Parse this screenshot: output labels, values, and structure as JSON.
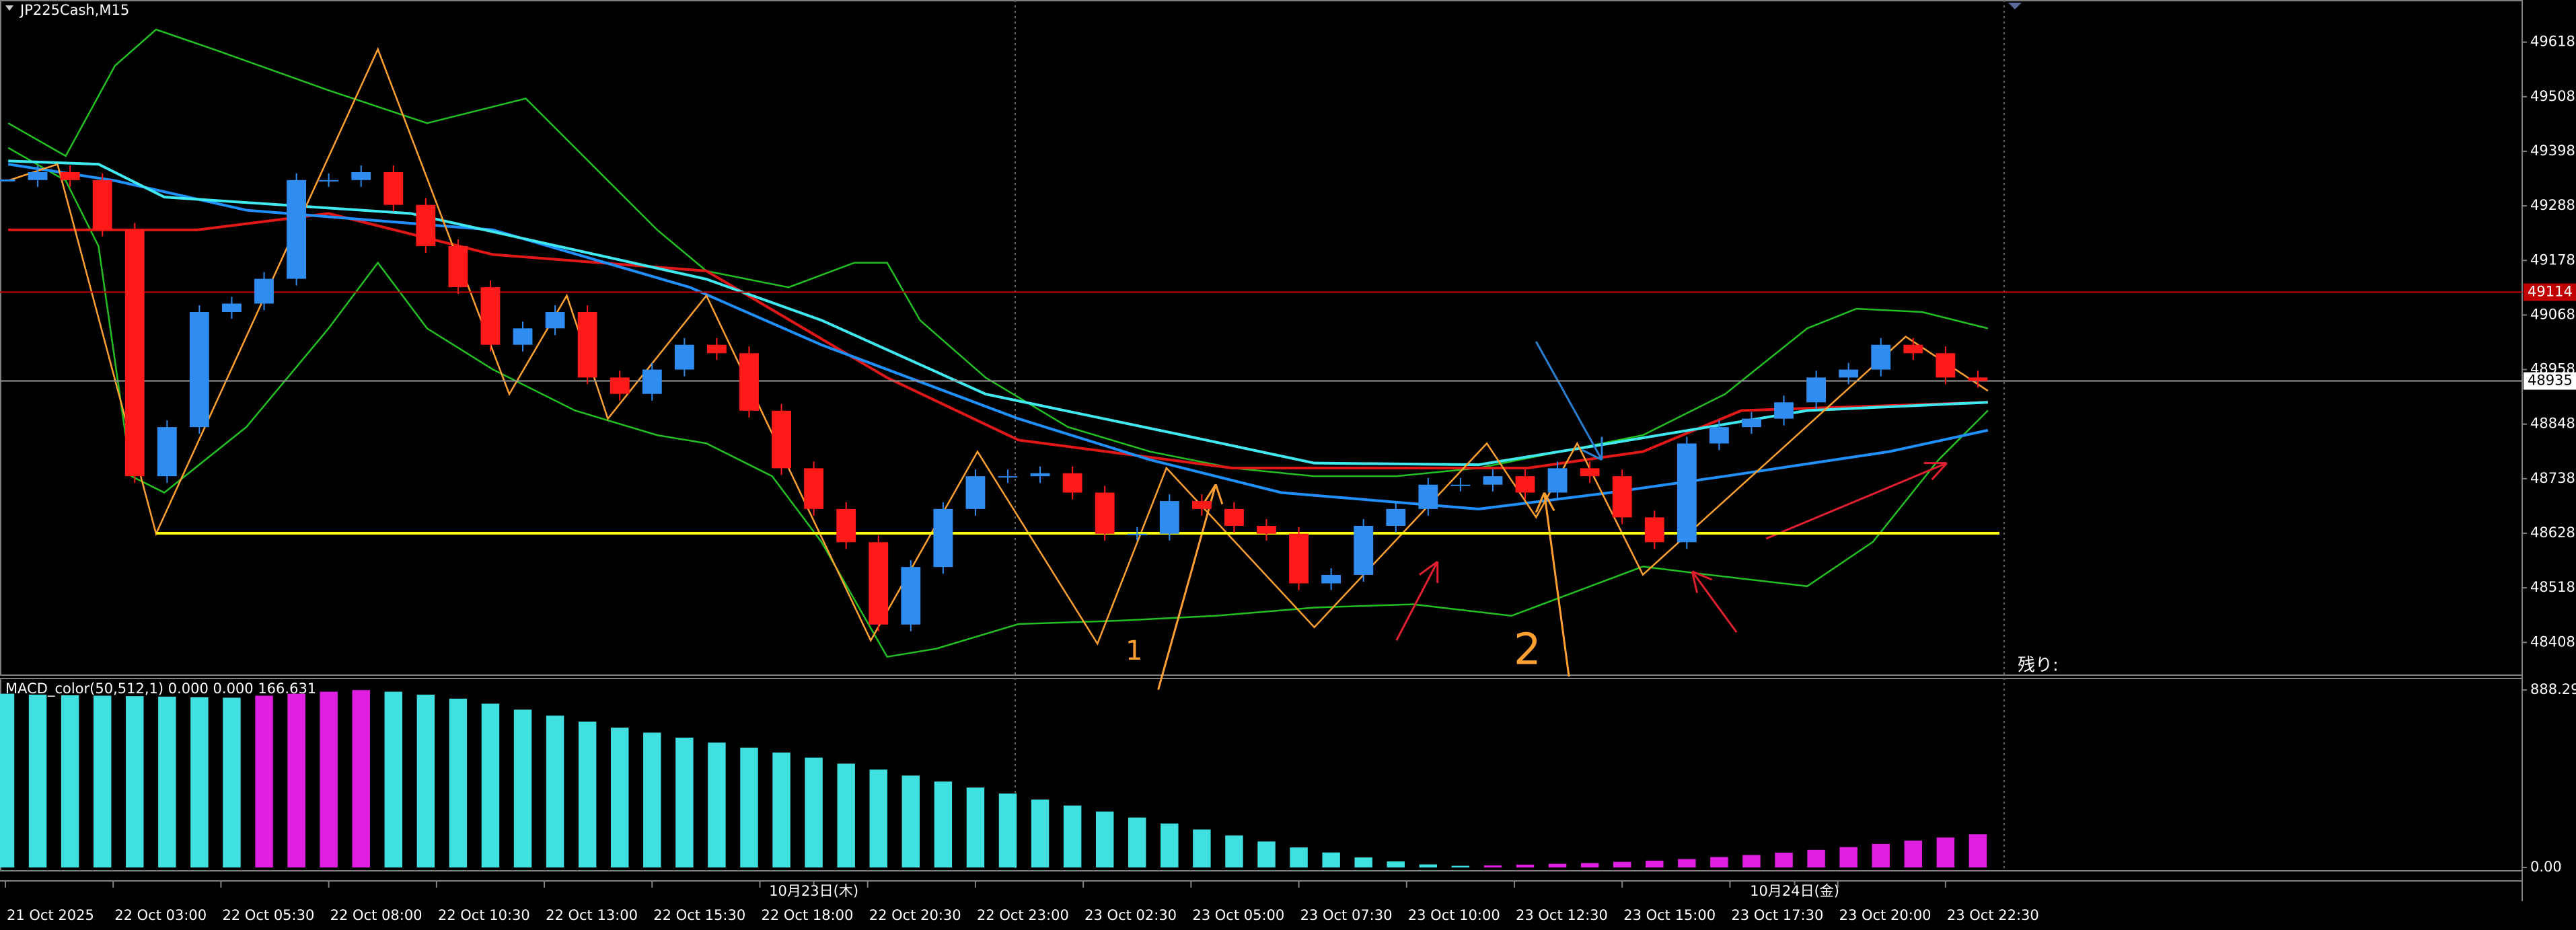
{
  "chart_data": [
    {
      "type": "candlestick",
      "title": "JP225Cash,M15",
      "x": [
        0,
        3,
        6,
        9,
        12,
        15,
        18,
        21,
        24,
        27,
        30,
        33,
        36,
        39,
        42,
        45,
        48,
        51,
        54,
        57,
        60,
        63,
        66,
        69,
        72,
        75,
        78,
        81,
        84,
        87,
        90,
        93,
        96,
        99,
        102,
        105,
        108,
        111,
        114,
        117,
        120,
        123,
        126,
        129,
        132,
        135,
        138,
        141,
        144,
        147,
        150,
        153,
        156,
        159,
        162,
        165,
        168,
        171,
        174,
        177,
        180,
        183
      ],
      "values": [
        49340,
        49356,
        49340,
        49240,
        48743,
        48842,
        49074,
        49091,
        49141,
        49340,
        49340,
        49356,
        49290,
        49207,
        49124,
        49008,
        49041,
        49074,
        48942,
        48909,
        48958,
        49008,
        48991,
        48875,
        48759,
        48677,
        48610,
        48444,
        48560,
        48677,
        48743,
        48743,
        48749,
        48710,
        48627,
        48627,
        48693,
        48677,
        48643,
        48627,
        48527,
        48544,
        48643,
        48677,
        48726,
        48726,
        48743,
        48710,
        48759,
        48743,
        48660,
        48610,
        48809,
        48842,
        48859,
        48892,
        48942,
        48958,
        49008,
        48991,
        48942,
        48935
      ],
      "up_color": "#2f8cf0",
      "down_color": "#ff1a1a",
      "xlim": [
        -0.5,
        233.5
      ],
      "xticks": [
        {
          "value": 0,
          "label": "21 Oct 2025"
        },
        {
          "value": 10,
          "label": "22 Oct 03:00"
        },
        {
          "value": 20,
          "label": "22 Oct 05:30"
        },
        {
          "value": 30,
          "label": "22 Oct 08:00"
        },
        {
          "value": 40,
          "label": "22 Oct 10:30"
        },
        {
          "value": 50,
          "label": "22 Oct 13:00"
        },
        {
          "value": 60,
          "label": "22 Oct 15:30"
        },
        {
          "value": 70,
          "label": "22 Oct 18:00"
        },
        {
          "value": 80,
          "label": "22 Oct 20:30"
        },
        {
          "value": 90,
          "label": "22 Oct 23:00"
        },
        {
          "value": 100,
          "label": "23 Oct 02:30"
        },
        {
          "value": 110,
          "label": "23 Oct 05:00"
        },
        {
          "value": 120,
          "label": "23 Oct 07:30"
        },
        {
          "value": 130,
          "label": "23 Oct 10:00"
        },
        {
          "value": 140,
          "label": "23 Oct 12:30"
        },
        {
          "value": 150,
          "label": "23 Oct 15:00"
        },
        {
          "value": 160,
          "label": "23 Oct 17:30"
        },
        {
          "value": 170,
          "label": "23 Oct 20:00"
        },
        {
          "value": 180,
          "label": "23 Oct 22:30"
        }
      ],
      "date_ticks": [
        {
          "value": 75,
          "label": "10月23日(木)"
        },
        {
          "value": 166,
          "label": "10月24日(金)"
        }
      ],
      "ylim": [
        48342,
        49703
      ],
      "yticks": [
        49618,
        49508,
        49398,
        49288,
        49178,
        49068,
        48958,
        48848,
        48738,
        48628,
        48518,
        48408
      ],
      "levels": [
        {
          "value": 49114,
          "color": "#c00000"
        },
        {
          "value": 48935,
          "color": "#9a9a9a"
        },
        {
          "value": 48628,
          "color": "#ffff00",
          "x_range": [
            14,
            185
          ]
        }
      ],
      "annotations": [
        "1",
        "2",
        "残り:"
      ]
    },
    {
      "type": "bar",
      "title": "MACD_color(50,512,1) 0.000 0.000 166.631",
      "x": [
        0,
        3,
        6,
        9,
        12,
        15,
        18,
        21,
        24,
        27,
        30,
        33,
        36,
        39,
        42,
        45,
        48,
        51,
        54,
        57,
        60,
        63,
        66,
        69,
        72,
        75,
        78,
        81,
        84,
        87,
        90,
        93,
        96,
        99,
        102,
        105,
        108,
        111,
        114,
        117,
        120,
        123,
        126,
        129,
        132,
        135,
        138,
        141,
        144,
        147,
        150,
        153,
        156,
        159,
        162,
        165,
        168,
        171,
        174,
        177,
        180,
        183
      ],
      "values": [
        870,
        865,
        862,
        860,
        858,
        855,
        852,
        850,
        860,
        870,
        880,
        888,
        880,
        865,
        845,
        820,
        790,
        760,
        730,
        700,
        675,
        650,
        625,
        600,
        575,
        550,
        520,
        490,
        460,
        430,
        400,
        370,
        340,
        310,
        280,
        250,
        220,
        190,
        160,
        130,
        100,
        75,
        50,
        30,
        15,
        8,
        10,
        14,
        18,
        22,
        28,
        34,
        42,
        52,
        62,
        74,
        88,
        102,
        118,
        134,
        150,
        166.631
      ],
      "color": "#40e0e0",
      "rising_color": "#e020e0",
      "ylim": [
        -17,
        946
      ],
      "yticks": [
        888.292,
        {
          "value": 0,
          "label": "0.00"
        }
      ]
    }
  ]
}
